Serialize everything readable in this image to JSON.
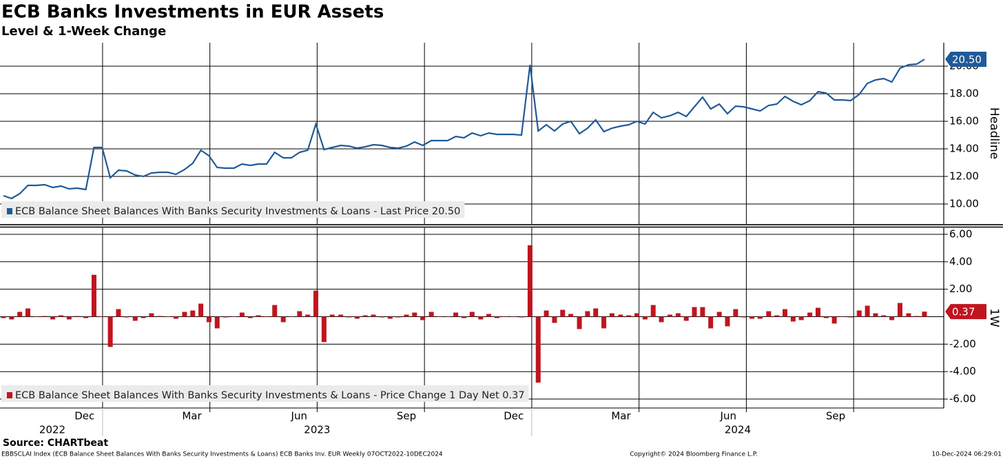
{
  "chart_data": {
    "type": "line",
    "title": "ECB Banks Investments in EUR Assets",
    "subtitle": "Level & 1-Week Change",
    "source": "Source: CHARTbeat",
    "footer_left": "EBBSCLAI Index (ECB Balance Sheet Balances With Banks Security Investments & Loans) ECB Banks Inv. EUR  Weekly 07OCT2022-10DEC2024",
    "footer_center": "Copyright© 2024 Bloomberg Finance L.P.",
    "footer_right": "10-Dec-2024 06:29:01",
    "x": [
      2022.769,
      2022.788,
      2022.807,
      2022.826,
      2022.846,
      2022.865,
      2022.884,
      2022.903,
      2022.922,
      2022.941,
      2022.961,
      2022.98,
      2022.999,
      2023.018,
      2023.037,
      2023.056,
      2023.076,
      2023.095,
      2023.114,
      2023.133,
      2023.152,
      2023.171,
      2023.191,
      2023.21,
      2023.229,
      2023.248,
      2023.267,
      2023.286,
      2023.306,
      2023.325,
      2023.344,
      2023.363,
      2023.382,
      2023.401,
      2023.421,
      2023.44,
      2023.459,
      2023.478,
      2023.497,
      2023.516,
      2023.535,
      2023.555,
      2023.574,
      2023.593,
      2023.612,
      2023.631,
      2023.651,
      2023.67,
      2023.689,
      2023.708,
      2023.727,
      2023.746,
      2023.766,
      2023.785,
      2023.804,
      2023.823,
      2023.842,
      2023.861,
      2023.881,
      2023.9,
      2023.919,
      2023.938,
      2023.957,
      2023.976,
      2023.996,
      2024.015,
      2024.034,
      2024.053,
      2024.072,
      2024.091,
      2024.111,
      2024.13,
      2024.149,
      2024.168,
      2024.187,
      2024.207,
      2024.226,
      2024.245,
      2024.264,
      2024.283,
      2024.302,
      2024.322,
      2024.341,
      2024.36,
      2024.379,
      2024.398,
      2024.417,
      2024.437,
      2024.456,
      2024.475,
      2024.494,
      2024.513,
      2024.532,
      2024.552,
      2024.571,
      2024.59,
      2024.609,
      2024.628,
      2024.648,
      2024.667,
      2024.686,
      2024.705,
      2024.724,
      2024.743,
      2024.763,
      2024.782,
      2024.801,
      2024.82,
      2024.839,
      2024.858,
      2024.878,
      2024.897,
      2024.915
    ],
    "xlim": [
      2022.761,
      2024.96
    ],
    "xgrid": [
      2023,
      2023.25,
      2023.5,
      2023.75,
      2024,
      2024.25,
      2024.5,
      2024.75
    ],
    "xticks": [
      {
        "value": 2022.958,
        "label": "Dec"
      },
      {
        "value": 2023.208,
        "label": "Mar"
      },
      {
        "value": 2023.458,
        "label": "Jun"
      },
      {
        "value": 2023.708,
        "label": "Sep"
      },
      {
        "value": 2023.958,
        "label": "Dec"
      },
      {
        "value": 2024.208,
        "label": "Mar"
      },
      {
        "value": 2024.458,
        "label": "Jun"
      },
      {
        "value": 2024.708,
        "label": "Sep"
      }
    ],
    "xticks_year": [
      {
        "value": 2022.883,
        "label": "2022"
      },
      {
        "value": 2023.5,
        "label": "2023"
      },
      {
        "value": 2024.48,
        "label": "2024"
      }
    ],
    "panels": [
      {
        "type": "line",
        "axis_label": "Headline",
        "ylim": [
          8.55,
          21.7
        ],
        "yticks": [
          {
            "value": 10,
            "label": "10.00"
          },
          {
            "value": 12,
            "label": "12.00"
          },
          {
            "value": 14,
            "label": "14.00"
          },
          {
            "value": 16,
            "label": "16.00"
          },
          {
            "value": 18,
            "label": "18.00"
          },
          {
            "value": 20,
            "label": "20.00"
          }
        ],
        "series": [
          {
            "name": "ECB Balance Sheet Balances With Banks Security Investments & Loans - Last Price 20.50",
            "color": "#1f5a99",
            "values": [
              10.6,
              10.4,
              10.75,
              11.35,
              11.35,
              11.4,
              11.2,
              11.3,
              11.1,
              11.15,
              11.05,
              14.1,
              14.1,
              11.9,
              12.45,
              12.4,
              12.1,
              12.0,
              12.25,
              12.3,
              12.3,
              12.15,
              12.5,
              12.95,
              13.9,
              13.5,
              12.65,
              12.6,
              12.6,
              12.9,
              12.8,
              12.9,
              12.9,
              13.75,
              13.35,
              13.35,
              13.75,
              13.9,
              15.8,
              13.95,
              14.1,
              14.25,
              14.2,
              14.05,
              14.15,
              14.3,
              14.25,
              14.1,
              14.05,
              14.2,
              14.5,
              14.25,
              14.6,
              14.6,
              14.6,
              14.9,
              14.8,
              15.15,
              14.95,
              15.15,
              15.05,
              15.05,
              15.05,
              15.0,
              20.1,
              15.3,
              15.75,
              15.3,
              15.8,
              16.0,
              15.1,
              15.5,
              16.1,
              15.25,
              15.5,
              15.65,
              15.75,
              16.0,
              15.8,
              16.65,
              16.25,
              16.4,
              16.65,
              16.35,
              17.05,
              17.75,
              16.9,
              17.25,
              16.55,
              17.1,
              17.05,
              16.9,
              16.75,
              17.15,
              17.25,
              17.8,
              17.45,
              17.2,
              17.5,
              18.15,
              18.05,
              17.55,
              17.55,
              17.5,
              17.95,
              18.75,
              19.0,
              19.1,
              18.85,
              19.85,
              20.1,
              20.15,
              20.5
            ],
            "last_label": "20.50"
          }
        ]
      },
      {
        "type": "bar",
        "axis_label": "1W",
        "ylim": [
          -6.65,
          6.5
        ],
        "yticks": [
          {
            "value": -6,
            "label": "-6.00"
          },
          {
            "value": -4,
            "label": "-4.00"
          },
          {
            "value": -2,
            "label": "-2.00"
          },
          {
            "value": 2,
            "label": "2.00"
          },
          {
            "value": 4,
            "label": "4.00"
          },
          {
            "value": 6,
            "label": "6.00"
          }
        ],
        "series": [
          {
            "name": "ECB Balance Sheet Balances With Banks Security Investments & Loans - Price Change 1 Day Net 0.37",
            "color": "#c0151f",
            "values": [
              -0.1,
              -0.2,
              0.35,
              0.6,
              0,
              0.05,
              -0.2,
              0.1,
              -0.2,
              0.05,
              -0.1,
              3.05,
              0,
              -2.2,
              0.55,
              -0.05,
              -0.3,
              -0.1,
              0.25,
              0.05,
              0,
              -0.15,
              0.35,
              0.45,
              0.95,
              -0.4,
              -0.85,
              -0.05,
              0,
              0.3,
              -0.1,
              0.1,
              0,
              0.85,
              -0.4,
              0,
              0.4,
              0.15,
              1.9,
              -1.85,
              0.15,
              0.15,
              -0.05,
              -0.15,
              0.1,
              0.15,
              -0.05,
              -0.15,
              -0.05,
              0.15,
              0.3,
              -0.25,
              0.35,
              0,
              0,
              0.3,
              -0.1,
              0.35,
              -0.2,
              0.2,
              -0.1,
              0,
              0,
              -0.05,
              5.2,
              -4.8,
              0.45,
              -0.45,
              0.5,
              0.2,
              -0.9,
              0.4,
              0.6,
              -0.85,
              0.25,
              0.15,
              0.1,
              0.25,
              -0.2,
              0.85,
              -0.4,
              0.15,
              0.25,
              -0.3,
              0.7,
              0.7,
              -0.85,
              0.35,
              -0.7,
              0.55,
              -0.05,
              -0.15,
              -0.15,
              0.4,
              0.1,
              0.55,
              -0.35,
              -0.25,
              0.3,
              0.65,
              -0.1,
              -0.5,
              0,
              -0.05,
              0.45,
              0.8,
              0.25,
              0.1,
              -0.25,
              1.0,
              0.25,
              0.05,
              0.37
            ],
            "last_label": "0.37"
          }
        ]
      }
    ]
  }
}
